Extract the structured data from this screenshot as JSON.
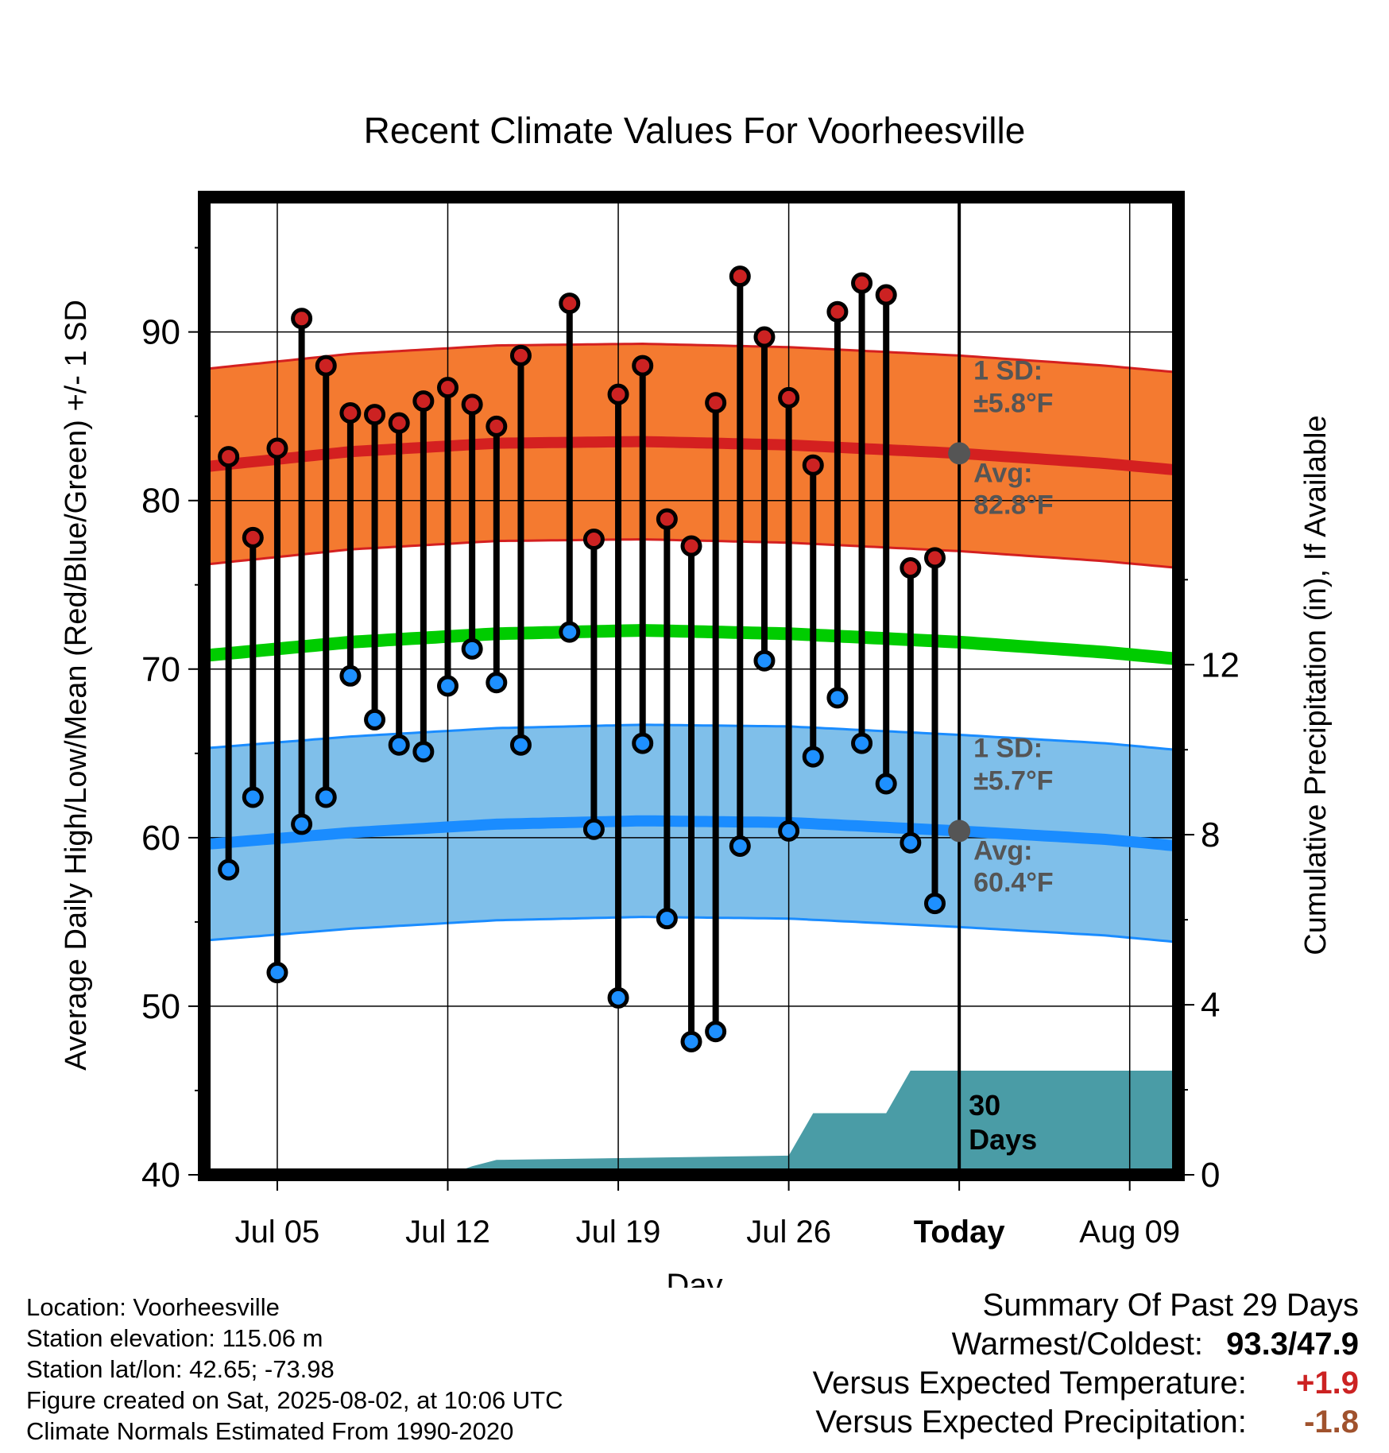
{
  "chart_data": {
    "type": "line",
    "title": "Recent Climate Values For Voorheesville",
    "xlabel": "Day",
    "ylabel": "Average Daily High/Low/Mean (Red/Blue/Green) +/- 1 SD",
    "ylabel_right": "Cumulative Precipitation (in), If Available",
    "ylim": [
      40,
      98
    ],
    "y_ticks": [
      "40",
      "50",
      "60",
      "70",
      "80",
      "90"
    ],
    "y2lim": [
      0,
      23
    ],
    "y2_ticks": [
      "0",
      "4",
      "8",
      "12"
    ],
    "x_ticks": [
      {
        "date": "2025-07-05",
        "label": "Jul 05"
      },
      {
        "date": "2025-07-12",
        "label": "Jul 12"
      },
      {
        "date": "2025-07-19",
        "label": "Jul 19"
      },
      {
        "date": "2025-07-26",
        "label": "Jul 26"
      },
      {
        "date": "2025-08-02",
        "label": "Today"
      },
      {
        "date": "2025-08-09",
        "label": "Aug 09"
      }
    ],
    "xlim": [
      "2025-07-02",
      "2025-08-11"
    ],
    "today": "2025-08-02",
    "grid": true,
    "dates": [
      "2025-07-03",
      "2025-07-04",
      "2025-07-05",
      "2025-07-06",
      "2025-07-07",
      "2025-07-08",
      "2025-07-09",
      "2025-07-10",
      "2025-07-11",
      "2025-07-12",
      "2025-07-13",
      "2025-07-14",
      "2025-07-15",
      "2025-07-17",
      "2025-07-18",
      "2025-07-19",
      "2025-07-20",
      "2025-07-21",
      "2025-07-22",
      "2025-07-23",
      "2025-07-24",
      "2025-07-25",
      "2025-07-26",
      "2025-07-27",
      "2025-07-28",
      "2025-07-29",
      "2025-07-30",
      "2025-07-31",
      "2025-08-01"
    ],
    "highs": [
      82.6,
      77.8,
      83.1,
      90.8,
      88.0,
      85.2,
      85.1,
      84.6,
      85.9,
      86.7,
      85.7,
      84.4,
      88.6,
      91.7,
      77.7,
      86.3,
      88.0,
      78.9,
      77.3,
      85.8,
      93.3,
      89.7,
      86.1,
      82.1,
      91.2,
      92.9,
      92.2,
      76.0,
      76.6
    ],
    "lows": [
      58.1,
      62.4,
      52.0,
      60.8,
      62.4,
      69.6,
      67.0,
      65.5,
      65.1,
      69.0,
      71.2,
      69.2,
      65.5,
      72.2,
      60.5,
      50.5,
      65.6,
      55.2,
      47.9,
      48.5,
      59.5,
      70.5,
      60.4,
      64.8,
      68.3,
      65.6,
      63.2,
      59.7,
      56.1
    ],
    "normal_dates": [
      "2025-07-02",
      "2025-07-08",
      "2025-07-14",
      "2025-07-20",
      "2025-07-26",
      "2025-08-02",
      "2025-08-08",
      "2025-08-11"
    ],
    "normal_high": [
      82.0,
      82.9,
      83.4,
      83.5,
      83.3,
      82.8,
      82.2,
      81.8
    ],
    "normal_low": [
      59.6,
      60.3,
      60.8,
      61.0,
      60.9,
      60.4,
      59.9,
      59.5
    ],
    "normal_mean": [
      70.8,
      71.6,
      72.1,
      72.3,
      72.1,
      71.6,
      71.0,
      70.6
    ],
    "high_sd": 5.8,
    "low_sd": 5.7,
    "precip_dates": [
      "2025-07-02",
      "2025-07-12",
      "2025-07-13",
      "2025-07-14",
      "2025-07-26",
      "2025-07-27",
      "2025-07-30",
      "2025-07-31",
      "2025-08-11"
    ],
    "precip_cum": [
      0,
      0,
      0.2,
      0.35,
      0.45,
      1.45,
      1.45,
      2.45,
      2.45
    ],
    "annotations": {
      "high_sd_label": "1 SD:",
      "high_sd_value": "±5.8°F",
      "high_avg_label": "Avg:",
      "high_avg_value": "82.8°F",
      "low_sd_label": "1 SD:",
      "low_sd_value": "±5.7°F",
      "low_avg_label": "Avg:",
      "low_avg_value": "60.4°F",
      "precip_days_1": "30",
      "precip_days_2": "Days"
    },
    "colors": {
      "high_band": "#f47a30",
      "high_line": "#d42020",
      "low_band": "#7fbfea",
      "low_line": "#1a8cff",
      "mean_line": "#00cc00",
      "precip": "#4a9ca6",
      "high_dot": "#cc2222",
      "low_dot": "#1e90ff",
      "annotation": "#555555"
    }
  },
  "footer": {
    "location": "Location: Voorheesville",
    "elevation": "Station elevation: 115.06 m",
    "latlon": "Station lat/lon: 42.65; -73.98",
    "created": "Figure created on Sat, 2025-08-02, at 10:06 UTC",
    "normals": "Climate Normals Estimated From 1990-2020"
  },
  "summary": {
    "title": "Summary Of Past 29 Days",
    "warm_cold_label": "Warmest/Coldest:",
    "warm_cold_value": "93.3/47.9",
    "temp_label": "Versus Expected Temperature:",
    "temp_value": "+1.9",
    "temp_color": "#cc2222",
    "precip_label": "Versus Expected Precipitation:",
    "precip_value": "-1.8",
    "precip_color": "#a0522d"
  }
}
